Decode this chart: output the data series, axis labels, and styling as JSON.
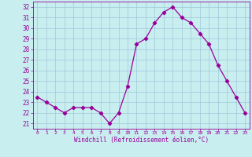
{
  "x": [
    0,
    1,
    2,
    3,
    4,
    5,
    6,
    7,
    8,
    9,
    10,
    11,
    12,
    13,
    14,
    15,
    16,
    17,
    18,
    19,
    20,
    21,
    22,
    23
  ],
  "y": [
    23.5,
    23.0,
    22.5,
    22.0,
    22.5,
    22.5,
    22.5,
    22.0,
    21.0,
    22.0,
    24.5,
    28.5,
    29.0,
    30.5,
    31.5,
    32.0,
    31.0,
    30.5,
    29.5,
    28.5,
    26.5,
    25.0,
    23.5,
    22.0
  ],
  "line_color": "#990099",
  "marker": "D",
  "marker_size": 2.2,
  "bg_color": "#c8eef0",
  "grid_color": "#a0c8d8",
  "xlabel": "Windchill (Refroidissement éolien,°C)",
  "xlabel_color": "#990099",
  "tick_color": "#990099",
  "ylabel_ticks": [
    21,
    22,
    23,
    24,
    25,
    26,
    27,
    28,
    29,
    30,
    31,
    32
  ],
  "xlim": [
    -0.5,
    23.5
  ],
  "ylim": [
    20.5,
    32.5
  ],
  "xtick_labels": [
    "0",
    "1",
    "2",
    "3",
    "4",
    "5",
    "6",
    "7",
    "8",
    "9",
    "10",
    "11",
    "12",
    "13",
    "14",
    "15",
    "16",
    "17",
    "18",
    "19",
    "20",
    "21",
    "22",
    "23"
  ],
  "font": "monospace"
}
